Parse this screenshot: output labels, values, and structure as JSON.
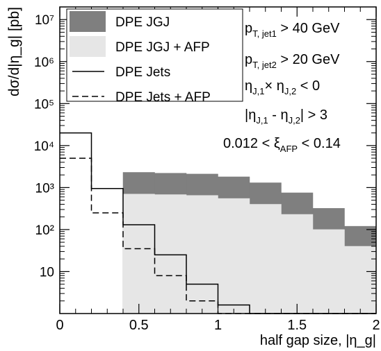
{
  "chart_data": {
    "type": "histogram",
    "ylabel": "dσ/d|η_g| [pb]",
    "xlabel": "half gap size, |η_g|",
    "xlim": [
      0,
      2
    ],
    "ylim": [
      1,
      20000000
    ],
    "yscale": "log",
    "grid": false,
    "legend_position": "top-left",
    "x_ticks": [
      "0",
      "0.5",
      "1",
      "1.5",
      "2"
    ],
    "y_ticks": [
      {
        "value": 10,
        "label": "10"
      },
      {
        "value": 100,
        "label": "10²"
      },
      {
        "value": 1000,
        "label": "10³"
      },
      {
        "value": 10000,
        "label": "10⁴"
      },
      {
        "value": 100000,
        "label": "10⁵"
      },
      {
        "value": 1000000,
        "label": "10⁶"
      },
      {
        "value": 10000000,
        "label": "10⁷"
      }
    ],
    "bin_edges": [
      0,
      0.2,
      0.4,
      0.6,
      0.8,
      1.0,
      1.2,
      1.4,
      1.6,
      1.8,
      2.0
    ],
    "series": [
      {
        "name": "DPE JGJ",
        "style": "band",
        "color": "#7f7f7f",
        "values": [
          null,
          null,
          2300,
          2200,
          2100,
          1800,
          1300,
          750,
          320,
          120
        ]
      },
      {
        "name": "DPE JGJ + AFP",
        "style": "band",
        "color": "#e6e6e6",
        "values": [
          null,
          null,
          700,
          680,
          650,
          550,
          400,
          230,
          100,
          40
        ]
      },
      {
        "name": "DPE Jets",
        "style": "solid",
        "color": "#000000",
        "values": [
          20000,
          950,
          130,
          25,
          5,
          1.6,
          1,
          1,
          1,
          1
        ]
      },
      {
        "name": "DPE Jets + AFP",
        "style": "dashed",
        "color": "#000000",
        "values": [
          5000,
          250,
          35,
          8,
          2,
          1,
          1,
          1,
          1,
          1
        ]
      }
    ],
    "annotations": [
      {
        "base": "p",
        "sub": "T, jet1",
        "rest": " > 40 GeV"
      },
      {
        "base": "p",
        "sub": "T, jet2",
        "rest": " > 20 GeV"
      },
      {
        "base": "η",
        "sub": "J,1",
        "rest": "× η",
        "sub2": "J,2",
        "rest2": " < 0"
      },
      {
        "base": "|η",
        "sub": "J,1",
        "rest": " - η",
        "sub2": "J,2",
        "rest2": "| > 3"
      },
      {
        "base": "0.012 < ξ",
        "sub": "AFP",
        "rest": " < 0.14"
      }
    ]
  }
}
